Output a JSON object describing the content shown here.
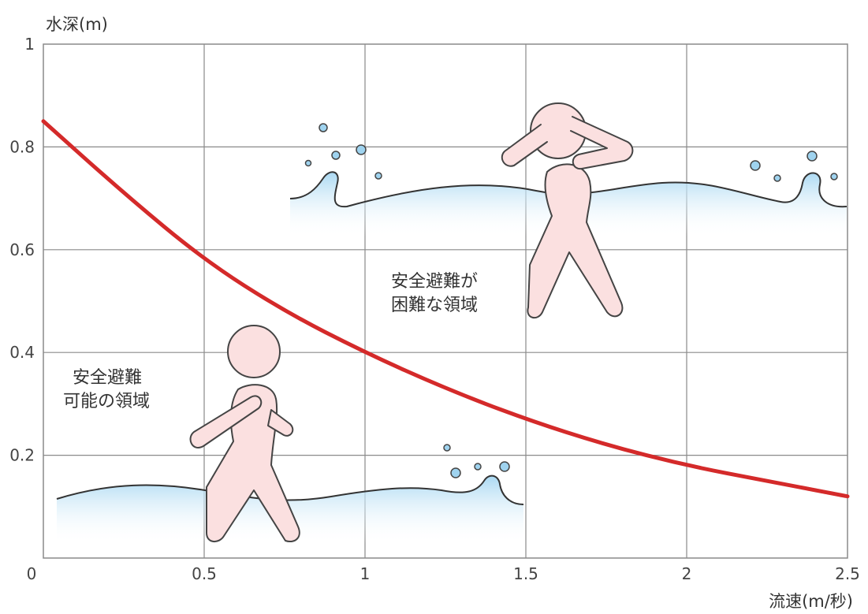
{
  "chart_data": {
    "type": "line",
    "xlabel": "流速(m/秒)",
    "ylabel": "水深(m)",
    "xlim": [
      0,
      2.5
    ],
    "ylim": [
      0,
      1
    ],
    "x_ticks": [
      "0",
      "0.5",
      "1",
      "1.5",
      "2",
      "2.5"
    ],
    "y_ticks": [
      "0.2",
      "0.4",
      "0.6",
      "0.8",
      "1"
    ],
    "grid": true,
    "series": [
      {
        "color": "#d42a2a",
        "x": [
          0,
          0.25,
          0.5,
          0.75,
          1.0,
          1.25,
          1.5,
          1.75,
          2.0,
          2.25,
          2.5
        ],
        "y": [
          0.85,
          0.71,
          0.58,
          0.48,
          0.4,
          0.33,
          0.27,
          0.22,
          0.18,
          0.15,
          0.12
        ]
      }
    ],
    "annotations": [
      {
        "lines": [
          "安全避難",
          "可能の領域"
        ]
      },
      {
        "lines": [
          "安全避難が",
          "困難な領域"
        ]
      }
    ]
  },
  "illustration": {
    "water_color": "#bfe3f6",
    "figure_color": "#fbe0e0"
  }
}
